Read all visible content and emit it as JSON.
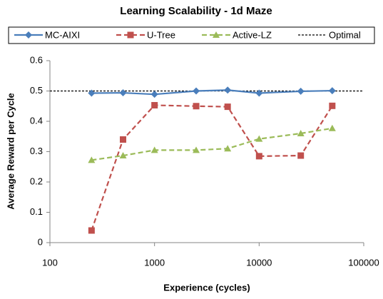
{
  "chart_data": {
    "type": "line",
    "title": "Learning Scalability - 1d Maze",
    "xlabel": "Experience (cycles)",
    "ylabel": "Average Reward per Cycle",
    "x": [
      250,
      500,
      1000,
      2500,
      5000,
      10000,
      25000,
      50000
    ],
    "series": [
      {
        "name": "MC-AIXI",
        "color": "#4a7ebb",
        "marker": "diamond",
        "dash": "solid",
        "values": [
          0.493,
          0.494,
          0.489,
          0.5,
          0.503,
          0.493,
          0.499,
          0.501
        ]
      },
      {
        "name": "U-Tree",
        "color": "#c0504d",
        "marker": "square",
        "dash": "dashed",
        "values": [
          0.04,
          0.34,
          0.453,
          0.45,
          0.448,
          0.285,
          0.287,
          0.451
        ]
      },
      {
        "name": "Active-LZ",
        "color": "#9bbb59",
        "marker": "triangle",
        "dash": "dashed",
        "values": [
          0.272,
          0.287,
          0.305,
          0.305,
          0.31,
          0.342,
          0.36,
          0.377
        ]
      }
    ],
    "reference_line": {
      "name": "Optimal",
      "color": "#000000",
      "value": 0.5
    },
    "xscale": "log",
    "xlim": [
      100,
      100000
    ],
    "xticks": [
      100,
      1000,
      10000,
      100000
    ],
    "ylim": [
      0,
      0.6
    ],
    "yticks": [
      0,
      0.1,
      0.2,
      0.3,
      0.4,
      0.5,
      0.6
    ],
    "grid": false,
    "legend": "top"
  }
}
